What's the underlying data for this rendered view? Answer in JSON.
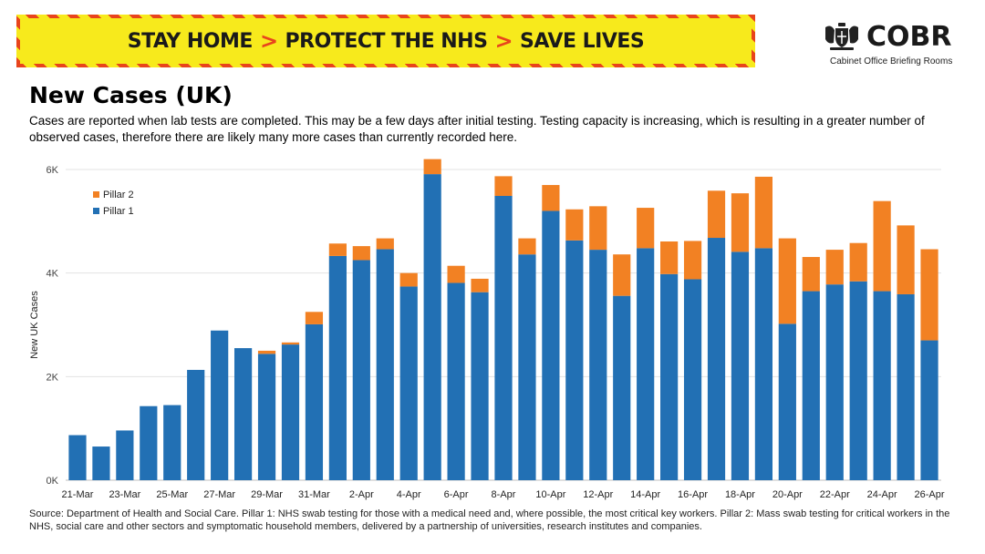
{
  "banner": {
    "part1": "STAY HOME",
    "part2": "PROTECT THE NHS",
    "part3": "SAVE LIVES",
    "separator": ">",
    "colors": {
      "background": "#f7ea1c",
      "stripe": "#e8441c",
      "text": "#1a1a1a"
    }
  },
  "logo": {
    "name": "COBR",
    "subtitle": "Cabinet Office Briefing Rooms",
    "icon": "royal-coat-of-arms-icon"
  },
  "header": {
    "title": "New Cases (UK)",
    "subtitle": "Cases are reported when lab tests are completed. This may be a few days after initial testing. Testing capacity is increasing, which is resulting in a greater number of observed cases, therefore there are likely many more cases than currently recorded here."
  },
  "footer": {
    "source": "Source: Department of Health and Social Care. Pillar 1: NHS swab testing for those with a medical need and, where possible, the most critical key workers. Pillar 2: Mass swab testing for critical workers in the NHS, social care and other sectors and symptomatic household members, delivered by a partnership of universities, research institutes and companies."
  },
  "chart_data": {
    "type": "bar",
    "stacked": true,
    "title": "New Cases (UK)",
    "ylabel": "New UK Cases",
    "xlabel": "",
    "ylim": [
      0,
      6000
    ],
    "yticks": [
      0,
      2000,
      4000,
      6000
    ],
    "ytick_labels": [
      "0K",
      "2K",
      "4K",
      "6K"
    ],
    "grid": true,
    "legend": "top-left",
    "categories": [
      "21-Mar",
      "22-Mar",
      "23-Mar",
      "24-Mar",
      "25-Mar",
      "26-Mar",
      "27-Mar",
      "28-Mar",
      "29-Mar",
      "30-Mar",
      "31-Mar",
      "1-Apr",
      "2-Apr",
      "3-Apr",
      "4-Apr",
      "5-Apr",
      "6-Apr",
      "7-Apr",
      "8-Apr",
      "9-Apr",
      "10-Apr",
      "11-Apr",
      "12-Apr",
      "13-Apr",
      "14-Apr",
      "15-Apr",
      "16-Apr",
      "17-Apr",
      "18-Apr",
      "19-Apr",
      "20-Apr",
      "21-Apr",
      "22-Apr",
      "23-Apr",
      "24-Apr",
      "25-Apr",
      "26-Apr"
    ],
    "xtick_labels_shown": [
      "21-Mar",
      "23-Mar",
      "25-Mar",
      "27-Mar",
      "29-Mar",
      "31-Mar",
      "2-Apr",
      "4-Apr",
      "6-Apr",
      "8-Apr",
      "10-Apr",
      "12-Apr",
      "14-Apr",
      "16-Apr",
      "18-Apr",
      "20-Apr",
      "22-Apr",
      "24-Apr",
      "26-Apr"
    ],
    "series": [
      {
        "name": "Pillar 1",
        "color": "#2270b4",
        "values": [
          870,
          650,
          960,
          1430,
          1450,
          2130,
          2890,
          2550,
          2440,
          2620,
          3010,
          4330,
          4250,
          4460,
          3740,
          5910,
          3810,
          3630,
          5490,
          4360,
          5200,
          4630,
          4450,
          3560,
          4480,
          3980,
          3880,
          4680,
          4410,
          4480,
          3020,
          3650,
          3780,
          3840,
          3650,
          3590,
          2700
        ]
      },
      {
        "name": "Pillar 2",
        "color": "#f28123",
        "values": [
          0,
          0,
          0,
          0,
          0,
          0,
          0,
          0,
          60,
          40,
          240,
          240,
          270,
          210,
          260,
          290,
          330,
          260,
          380,
          310,
          500,
          600,
          840,
          800,
          780,
          630,
          740,
          910,
          1130,
          1380,
          1650,
          660,
          670,
          740,
          1740,
          1330,
          1760
        ]
      }
    ]
  }
}
